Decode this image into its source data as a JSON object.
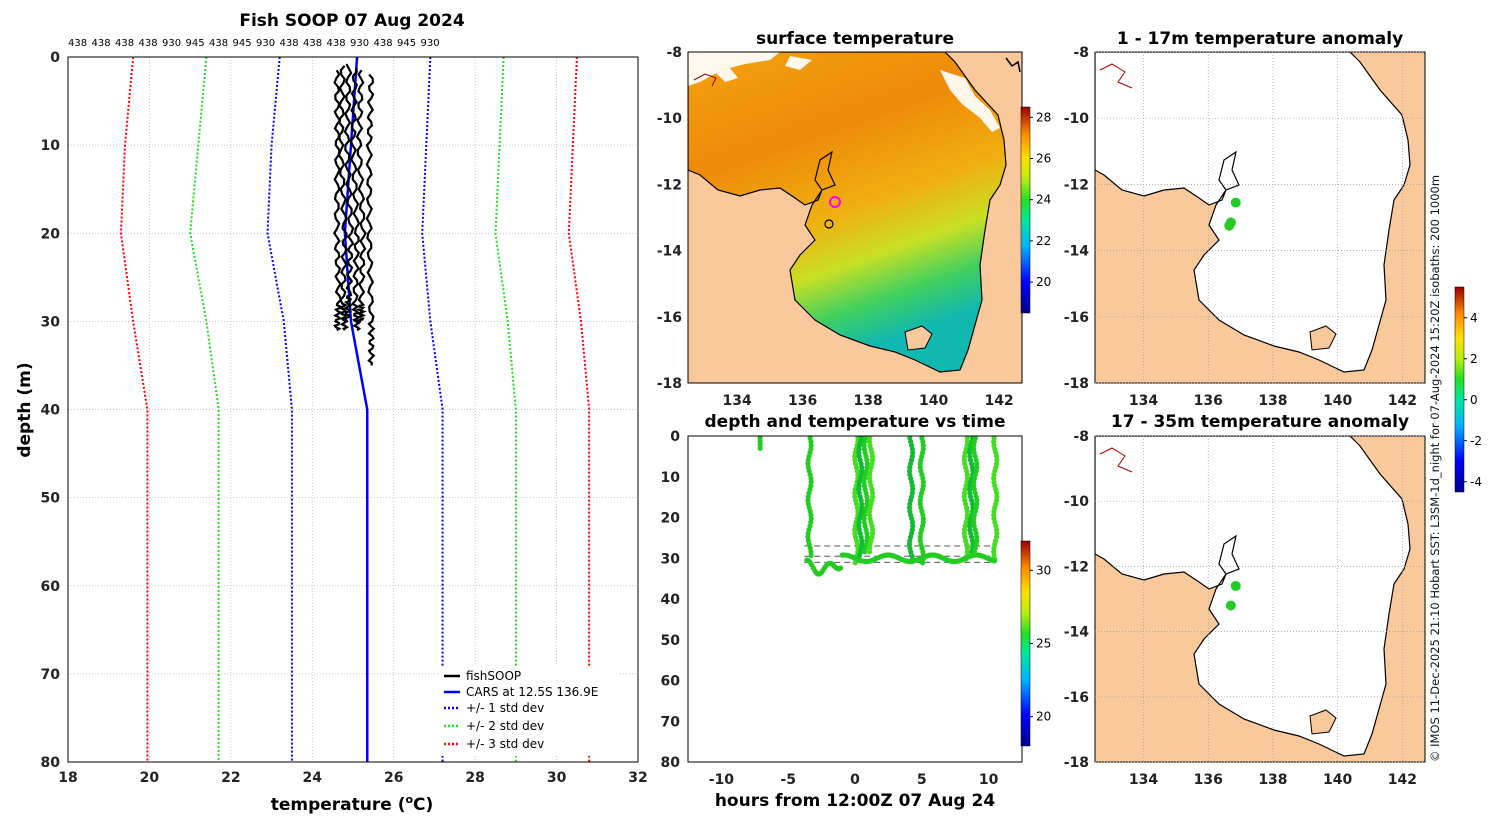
{
  "figure": {
    "main_title": "Fish SOOP 07 Aug 2024",
    "credit": "© IMOS 11-Dec-2025 21:10 Hobart SST: L3SM-1d_night for 07-Aug-2024 15:20Z isobaths: 200  1000m"
  },
  "colors": {
    "fishsoop": "#000000",
    "cars": "#0000ff",
    "std1": "#0000ff",
    "std2": "#22dd22",
    "std3": "#ff0000",
    "land": "#f9c89b",
    "ocean_blank": "#ffffff"
  },
  "chart_data": [
    {
      "id": "profile",
      "type": "line",
      "title": "Fish SOOP 07 Aug 2024",
      "xlabel": "temperature (°C)",
      "ylabel": "depth (m)",
      "xlim": [
        18,
        32
      ],
      "ylim": [
        80,
        0
      ],
      "xticks": [
        "18",
        "20",
        "22",
        "24",
        "26",
        "28",
        "30",
        "32"
      ],
      "yticks": [
        "0",
        "10",
        "20",
        "30",
        "40",
        "50",
        "60",
        "70",
        "80"
      ],
      "grid": true,
      "top_labels": [
        "438",
        "438",
        "438",
        "438",
        "930",
        "945",
        "438",
        "945",
        "930",
        "438",
        "438",
        "438",
        "930",
        "438",
        "945",
        "930"
      ],
      "legend_position": "bottom-right",
      "legend": [
        "fishSOOP",
        "CARS at 12.5S 136.9E",
        "+/- 1 std dev",
        "+/- 2 std dev",
        "+/- 3 std dev"
      ],
      "series": [
        {
          "name": "CARS at 12.5S 136.9E",
          "style": "solid",
          "color": "#0000ff",
          "temperature": [
            25.1,
            24.95,
            24.8,
            24.95,
            25.35,
            25.35
          ],
          "depth": [
            0,
            10,
            20,
            30,
            40,
            80
          ]
        },
        {
          "name": "-1 std dev",
          "style": "dotted",
          "color": "#0000ff",
          "temperature": [
            23.2,
            23.0,
            22.9,
            23.3,
            23.5,
            23.5
          ],
          "depth": [
            0,
            10,
            20,
            30,
            40,
            80
          ]
        },
        {
          "name": "+1 std dev",
          "style": "dotted",
          "color": "#0000ff",
          "temperature": [
            26.9,
            26.8,
            26.7,
            26.9,
            27.2,
            27.2
          ],
          "depth": [
            0,
            10,
            20,
            30,
            40,
            80
          ]
        },
        {
          "name": "-2 std dev",
          "style": "dotted",
          "color": "#22dd22",
          "temperature": [
            21.4,
            21.2,
            21.0,
            21.4,
            21.7,
            21.7
          ],
          "depth": [
            0,
            10,
            20,
            30,
            40,
            80
          ]
        },
        {
          "name": "+2 std dev",
          "style": "dotted",
          "color": "#22dd22",
          "temperature": [
            28.7,
            28.6,
            28.5,
            28.8,
            29.0,
            29.0
          ],
          "depth": [
            0,
            10,
            20,
            30,
            40,
            80
          ]
        },
        {
          "name": "-3 std dev",
          "style": "dotted",
          "color": "#ff0000",
          "temperature": [
            19.6,
            19.4,
            19.3,
            19.6,
            19.95,
            19.95
          ],
          "depth": [
            0,
            10,
            20,
            30,
            40,
            80
          ]
        },
        {
          "name": "+3 std dev",
          "style": "dotted",
          "color": "#ff0000",
          "temperature": [
            30.5,
            30.4,
            30.3,
            30.6,
            30.8,
            30.8
          ],
          "depth": [
            0,
            10,
            20,
            30,
            40,
            80
          ]
        }
      ],
      "fishsoop_casts": [
        {
          "temperature": [
            24.6,
            24.62,
            24.6,
            24.65,
            24.6
          ],
          "depth": [
            1.5,
            10,
            20,
            28,
            31
          ]
        },
        {
          "temperature": [
            24.75,
            24.7,
            24.8,
            24.75,
            24.8
          ],
          "depth": [
            1.0,
            10,
            20,
            28,
            31
          ]
        },
        {
          "temperature": [
            24.9,
            24.85,
            24.95,
            24.9,
            24.85
          ],
          "depth": [
            0.8,
            10,
            20,
            27,
            30
          ]
        },
        {
          "temperature": [
            25.05,
            25.0,
            25.1,
            25.05,
            25.1
          ],
          "depth": [
            1.2,
            10,
            20,
            28,
            31
          ]
        },
        {
          "temperature": [
            25.2,
            25.15,
            25.25,
            25.2,
            25.2
          ],
          "depth": [
            1.5,
            10,
            20,
            28,
            30
          ]
        },
        {
          "temperature": [
            25.45,
            25.4,
            25.4,
            25.45,
            25.45
          ],
          "depth": [
            2.0,
            10,
            20,
            30,
            35
          ]
        }
      ]
    },
    {
      "id": "sst_map",
      "type": "heatmap",
      "title": "surface temperature",
      "xlim": [
        132.5,
        142.7
      ],
      "ylim": [
        -18,
        -8
      ],
      "xticks": [
        "134",
        "136",
        "138",
        "140",
        "142"
      ],
      "yticks": [
        "-8",
        "-10",
        "-12",
        "-14",
        "-16",
        "-18"
      ],
      "colorbar": {
        "range": [
          18.5,
          28.5
        ],
        "ticks": [
          "28",
          "26",
          "24",
          "22",
          "20"
        ]
      }
    },
    {
      "id": "depth_time",
      "type": "scatter",
      "title": "depth and temperature vs time",
      "xlabel": "hours from 12:00Z 07 Aug 24",
      "xlim": [
        -12.5,
        12.5
      ],
      "ylim": [
        80,
        0
      ],
      "xticks": [
        "-10",
        "-5",
        "0",
        "5",
        "10"
      ],
      "yticks": [
        "0",
        "10",
        "20",
        "30",
        "40",
        "50",
        "60",
        "70",
        "80"
      ],
      "colorbar": {
        "range": [
          18,
          32
        ],
        "ticks": [
          "30",
          "25",
          "20"
        ]
      },
      "casts_hours": [
        -7.1,
        -3.4,
        0.1,
        0.4,
        0.8,
        1.2,
        4.2,
        5.0,
        8.3,
        8.7,
        9.0,
        10.5
      ],
      "bottom_depth_m": 30,
      "reference_depths_m": [
        27,
        29.5,
        31
      ]
    },
    {
      "id": "anom_top",
      "type": "scatter",
      "title": "1 - 17m temperature anomaly",
      "xlim": [
        132.5,
        142.7
      ],
      "ylim": [
        -18,
        -8
      ],
      "xticks": [
        "134",
        "136",
        "138",
        "140",
        "142"
      ],
      "yticks": [
        "-8",
        "-10",
        "-12",
        "-14",
        "-16",
        "-18"
      ],
      "points": [
        {
          "lon": 136.85,
          "lat": -12.55
        },
        {
          "lon": 136.7,
          "lat": -13.15
        },
        {
          "lon": 136.65,
          "lat": -13.25
        }
      ]
    },
    {
      "id": "anom_bottom",
      "type": "scatter",
      "title": "17 - 35m temperature anomaly",
      "xlim": [
        132.5,
        142.7
      ],
      "ylim": [
        -18,
        -8
      ],
      "xticks": [
        "134",
        "136",
        "138",
        "140",
        "142"
      ],
      "yticks": [
        "-8",
        "-10",
        "-12",
        "-14",
        "-16",
        "-18"
      ],
      "points": [
        {
          "lon": 136.85,
          "lat": -12.6
        },
        {
          "lon": 136.7,
          "lat": -13.2
        }
      ],
      "colorbar": {
        "range": [
          -4.5,
          5.5
        ],
        "ticks": [
          "4",
          "2",
          "0",
          "-2",
          "-4"
        ]
      }
    }
  ]
}
